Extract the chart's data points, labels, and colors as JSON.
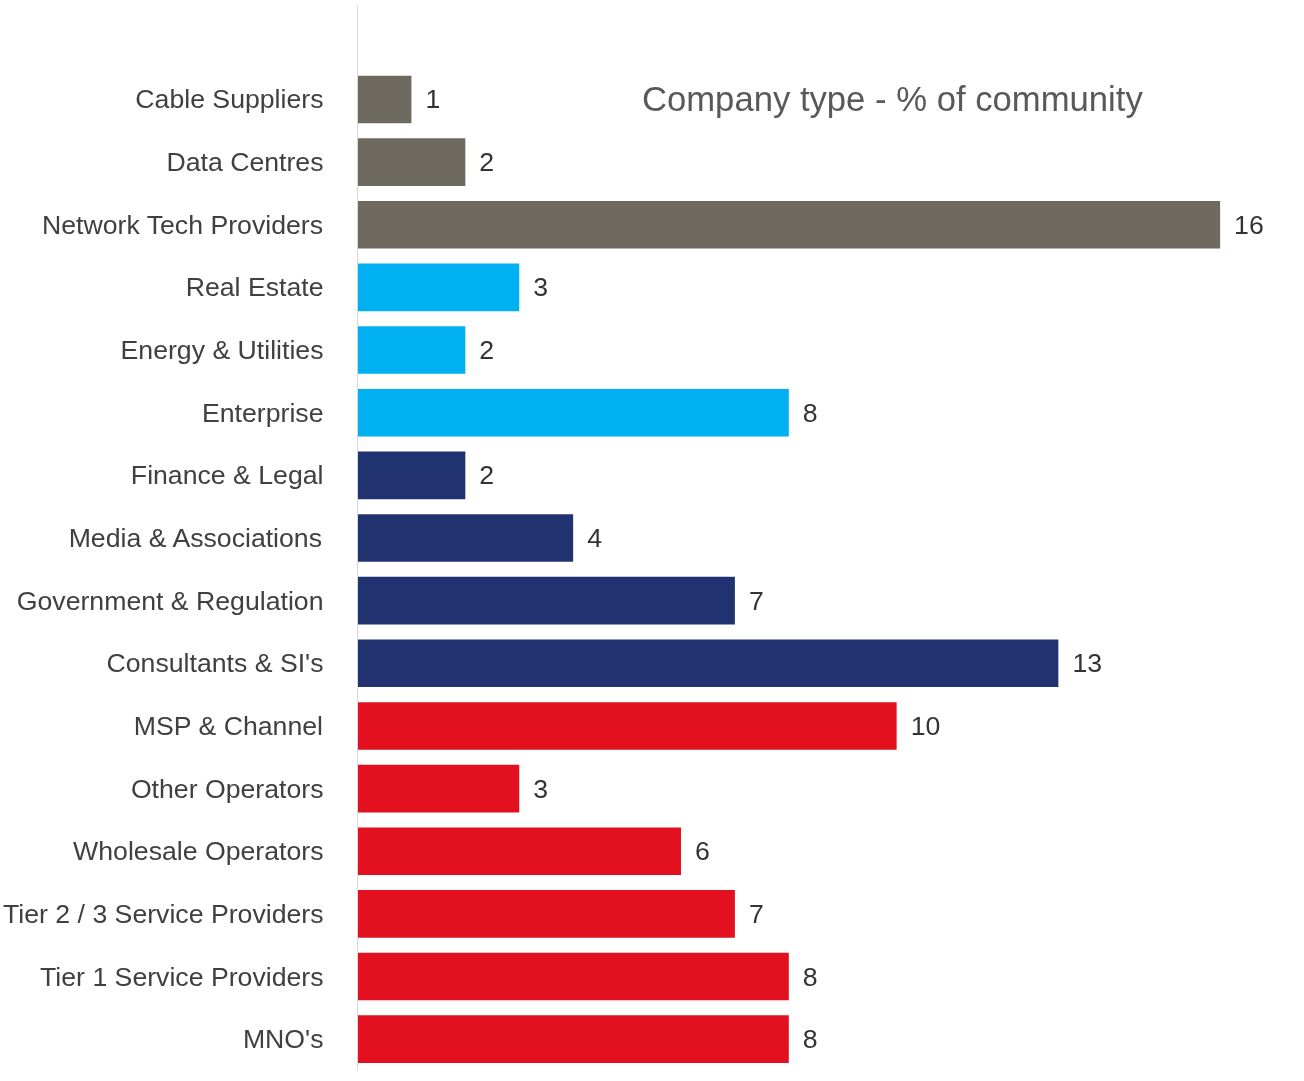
{
  "chart_data": {
    "type": "bar",
    "orientation": "horizontal",
    "title": "Company type - % of community",
    "categories": [
      "Cable Suppliers",
      "Data Centres",
      "Network Tech Providers",
      "Real Estate",
      "Energy & Utilities",
      "Enterprise",
      "Finance & Legal",
      "Media & Associations",
      "Government & Regulation",
      "Consultants & SI's",
      "MSP & Channel",
      "Other Operators",
      "Wholesale Operators",
      "Tier 2 / 3 Service Providers",
      "Tier 1 Service Providers",
      "MNO's"
    ],
    "values": [
      1,
      2,
      16,
      3,
      2,
      8,
      2,
      4,
      7,
      13,
      10,
      3,
      6,
      7,
      8,
      8
    ],
    "colors": [
      "#6f6a60",
      "#6f6a60",
      "#6f6a60",
      "#00b0f0",
      "#00b0f0",
      "#00b0f0",
      "#203370",
      "#203370",
      "#203370",
      "#203370",
      "#e31020",
      "#e31020",
      "#e31020",
      "#e31020",
      "#e31020",
      "#e31020"
    ],
    "data_labels": true,
    "grid": false
  }
}
